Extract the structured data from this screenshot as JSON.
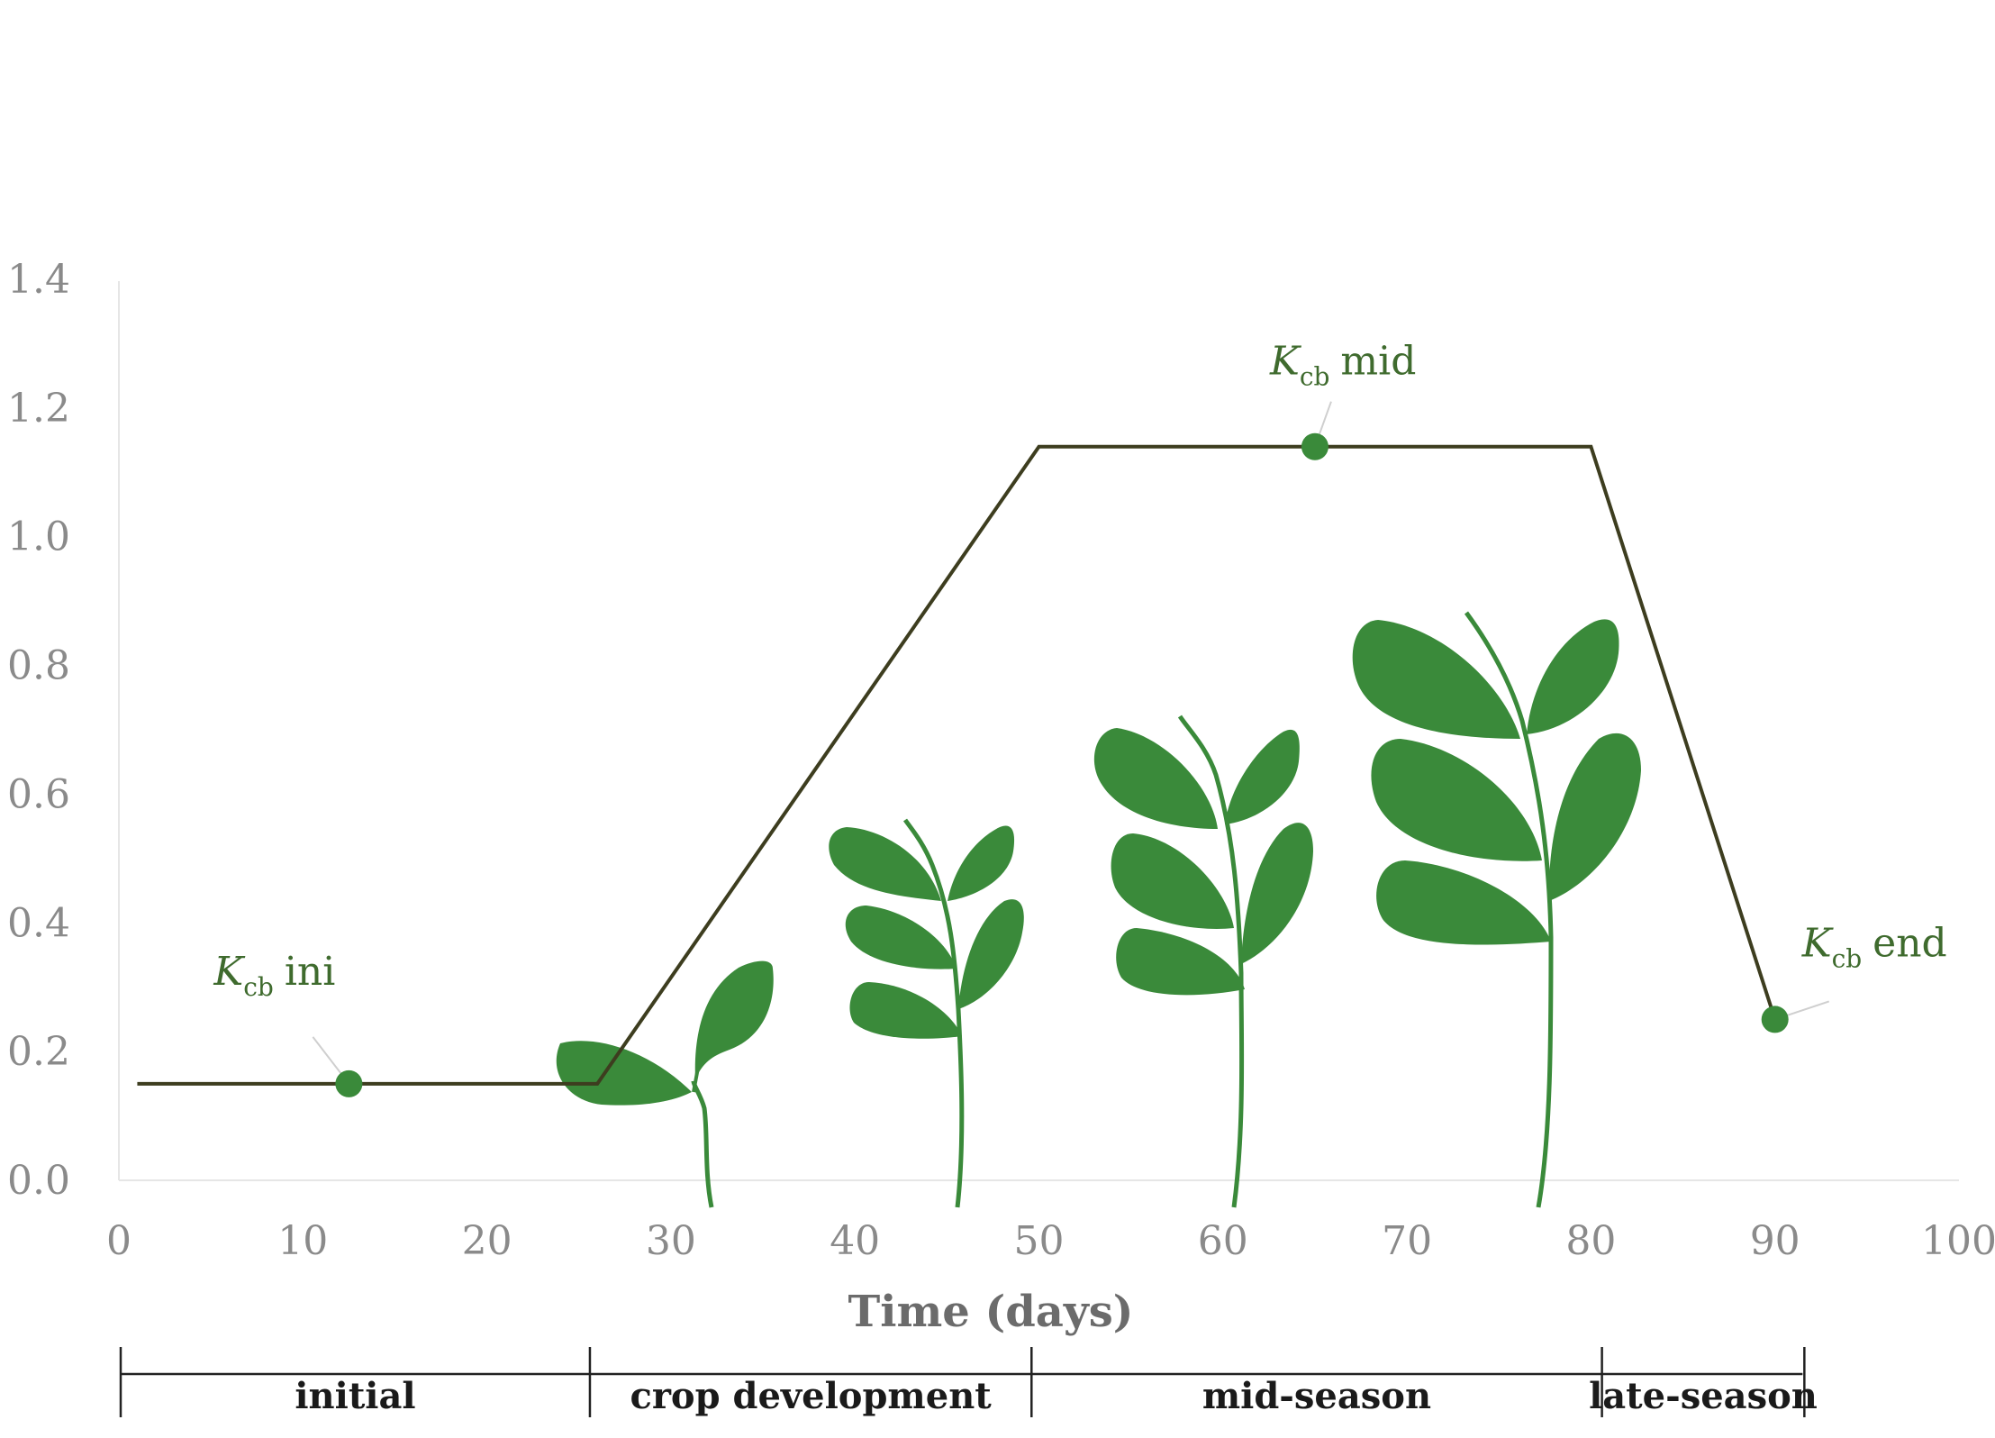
{
  "chart_data": {
    "type": "line",
    "xlabel": "Time (days)",
    "ylabel": "",
    "xlim": [
      0,
      100
    ],
    "ylim": [
      0,
      1.4
    ],
    "x_ticks": [
      "0",
      "10",
      "20",
      "30",
      "40",
      "50",
      "60",
      "70",
      "80",
      "90",
      "100"
    ],
    "y_ticks": [
      "0.0",
      "0.2",
      "0.4",
      "0.6",
      "0.8",
      "1.0",
      "1.2",
      "1.4"
    ],
    "grid": false,
    "series": [
      {
        "x": [
          1,
          26,
          50,
          80,
          90
        ],
        "y": [
          0.15,
          0.15,
          1.14,
          1.14,
          0.25
        ],
        "color": "#3d3d1f"
      }
    ],
    "points": [
      {
        "id": "ini",
        "x": 12.5,
        "y": 0.15,
        "symbol": "K",
        "sub": "cb",
        "suffix": "ini"
      },
      {
        "id": "mid",
        "x": 65,
        "y": 1.14,
        "symbol": "K",
        "sub": "cb",
        "suffix": "mid"
      },
      {
        "id": "end",
        "x": 90,
        "y": 0.25,
        "symbol": "K",
        "sub": "cb",
        "suffix": "end"
      }
    ],
    "stages": [
      {
        "label": "initial",
        "start": 0,
        "end": 25.5
      },
      {
        "label": "crop development",
        "start": 25.5,
        "end": 49.5
      },
      {
        "label": "mid-season",
        "start": 49.5,
        "end": 80.5
      },
      {
        "label": "late-season",
        "start": 80.5,
        "end": 91.5
      }
    ],
    "colors": {
      "line": "#3d3d1f",
      "marker": "#3a8a3a",
      "plant": "#3a8a3a",
      "annotation": "#3f6b2e"
    },
    "illustrations": [
      "plant-seedling",
      "plant-small",
      "plant-medium",
      "plant-large"
    ]
  }
}
